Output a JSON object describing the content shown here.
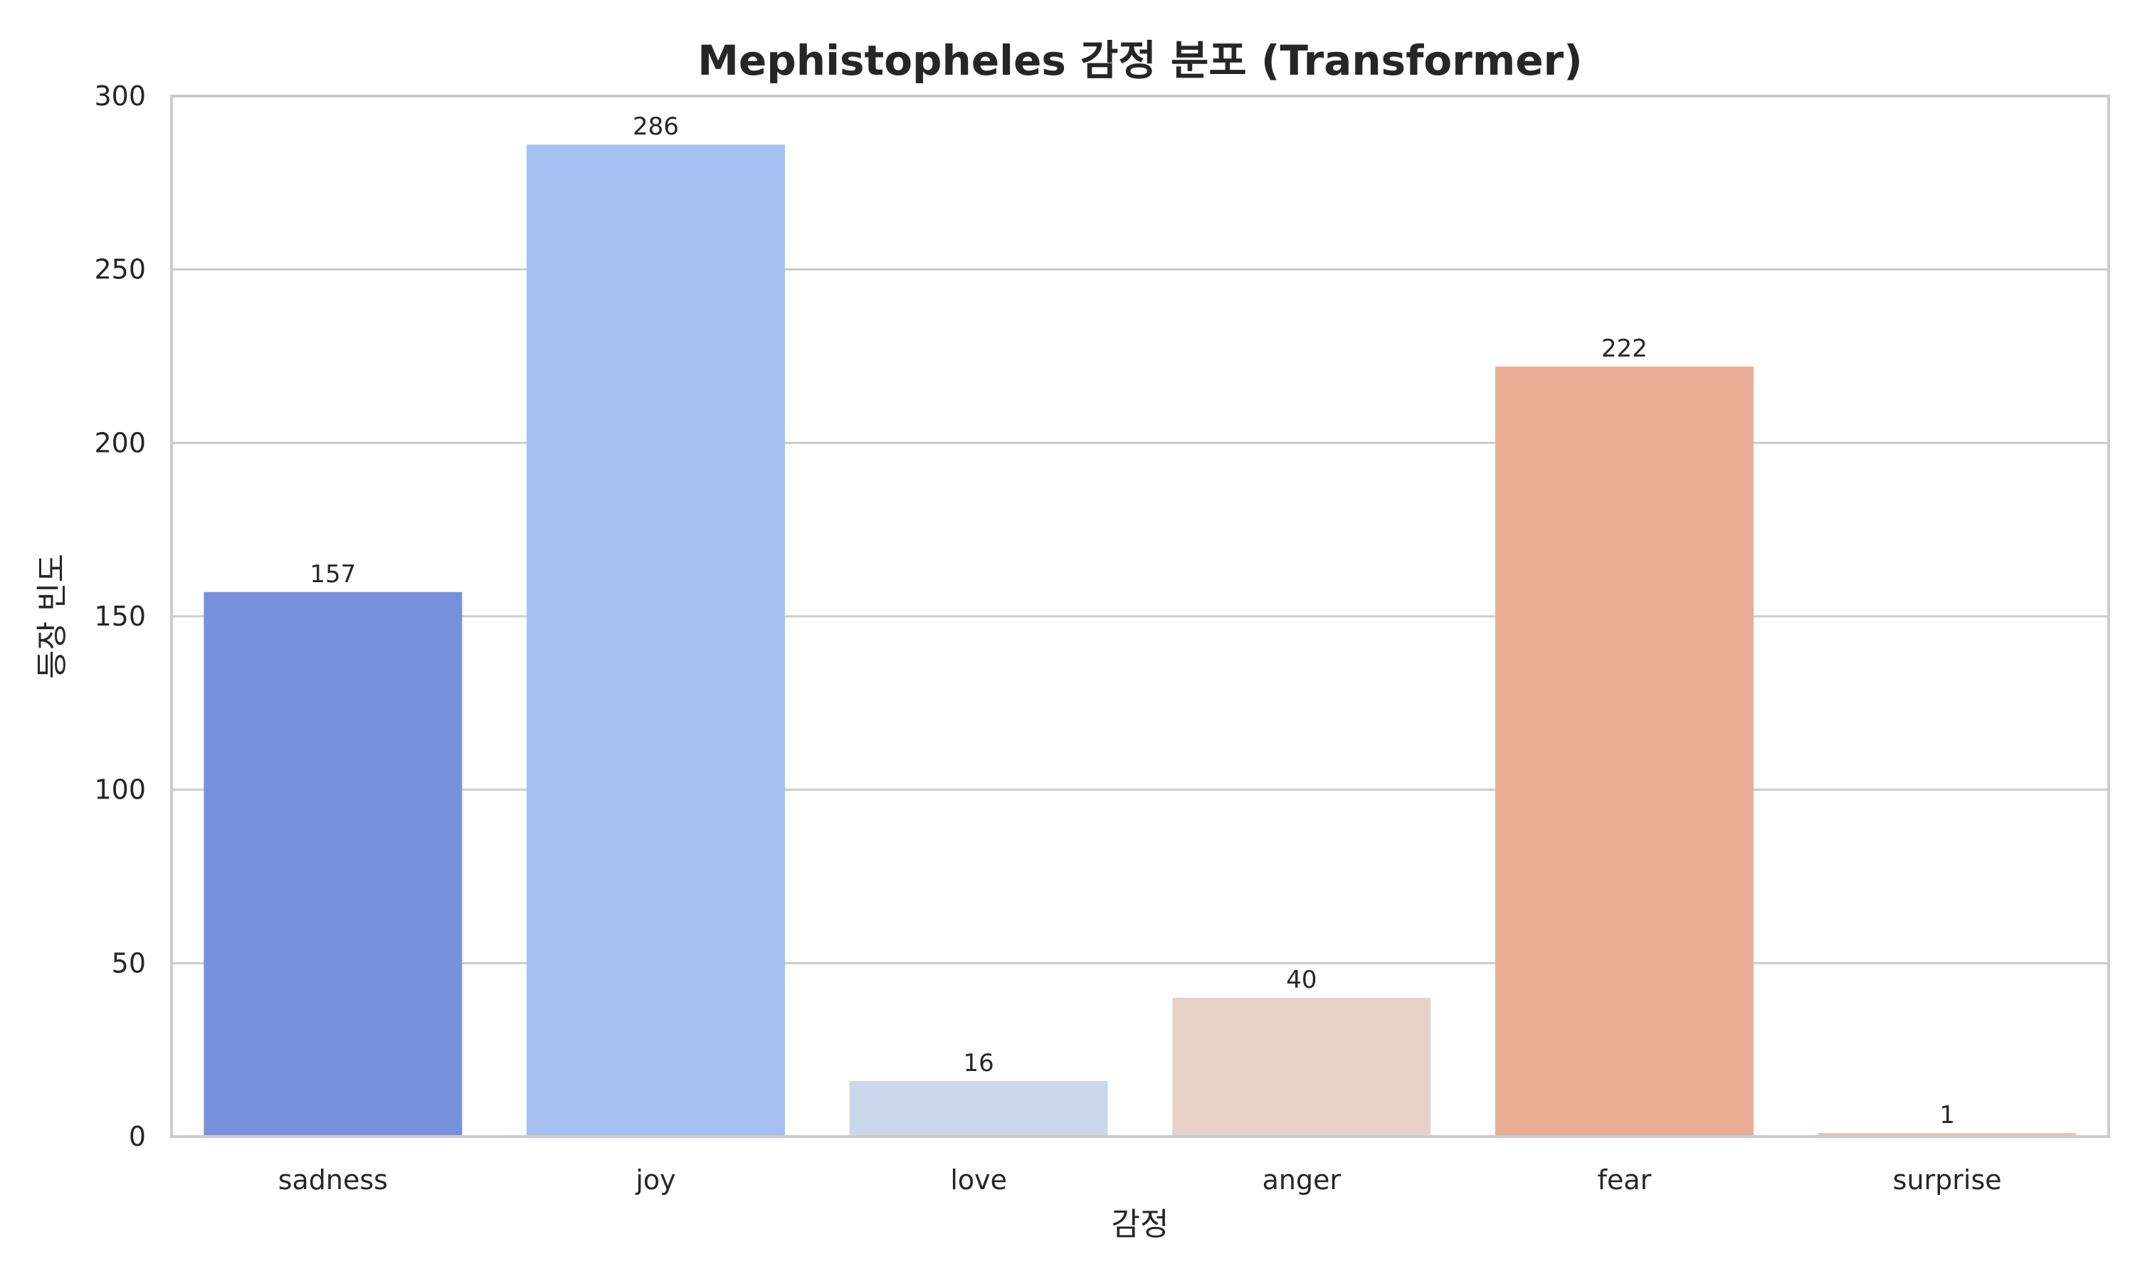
{
  "chart_data": {
    "type": "bar",
    "title": "Mephistopheles 감정 분포 (Transformer)",
    "xlabel": "감정",
    "ylabel": "등장 빈도",
    "categories": [
      "sadness",
      "joy",
      "love",
      "anger",
      "fear",
      "surprise"
    ],
    "values": [
      157,
      286,
      16,
      40,
      222,
      1
    ],
    "value_labels": [
      "157",
      "286",
      "16",
      "40",
      "222",
      "1"
    ],
    "colors": [
      "#7891dd",
      "#a6bff2",
      "#cbd7ea",
      "#e8d1c6",
      "#e9ad96",
      "#e2c4b6"
    ],
    "ylim": [
      0,
      300
    ],
    "yticks": [
      0,
      50,
      100,
      150,
      200,
      250,
      300
    ],
    "ytick_labels": [
      "0",
      "50",
      "100",
      "150",
      "200",
      "250",
      "300"
    ],
    "grid": "horizontal",
    "legend": "none"
  }
}
